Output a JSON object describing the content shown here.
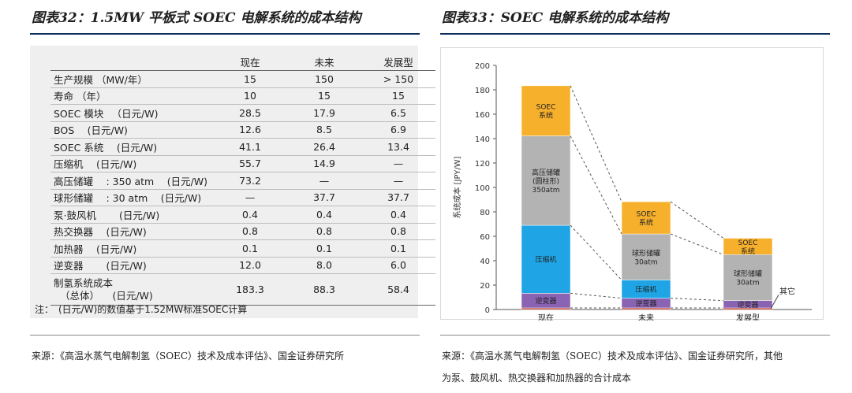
{
  "left": {
    "title": "图表32：1.5MW 平板式 SOEC 电解系统的成本结构",
    "headers": [
      "",
      "现在",
      "未来",
      "发展型"
    ],
    "rows": [
      {
        "label": "生产规模 （MW/年）",
        "values": [
          "15",
          "150",
          "> 150"
        ]
      },
      {
        "label": "寿命 （年）",
        "values": [
          "10",
          "15",
          "15"
        ]
      },
      {
        "label": "SOEC 模块 　（日元/W)",
        "values": [
          "28.5",
          "17.9",
          "6.5"
        ]
      },
      {
        "label": "BOS 　(日元/W)",
        "values": [
          "12.6",
          "8.5",
          "6.9"
        ]
      },
      {
        "label": "SOEC 系统 　(日元/W)",
        "values": [
          "41.1",
          "26.4",
          "13.4"
        ]
      },
      {
        "label": "压缩机 　(日元/W)",
        "values": [
          "55.7",
          "14.9",
          "—"
        ]
      },
      {
        "label": "高压储罐 　: 350 atm 　(日元/W)",
        "values": [
          "73.2",
          "—",
          "—"
        ]
      },
      {
        "label": "球形储罐 　: 30 atm 　(日元/W)",
        "values": [
          "—",
          "37.7",
          "37.7"
        ]
      },
      {
        "label": "泵·鼓风机 　　(日元/W)",
        "values": [
          "0.4",
          "0.4",
          "0.4"
        ]
      },
      {
        "label": "热交换器 　(日元/W)",
        "values": [
          "0.8",
          "0.8",
          "0.8"
        ]
      },
      {
        "label": "加热器 　(日元/W)",
        "values": [
          "0.1",
          "0.1",
          "0.1"
        ]
      },
      {
        "label": "逆变器 　　(日元/W)",
        "values": [
          "12.0",
          "8.0",
          "6.0"
        ]
      }
    ],
    "total_row": {
      "label_line1": "制氢系统成本",
      "label_line2": "（总体） 　(日元/W)",
      "values": [
        "183.3",
        "88.3",
        "58.4"
      ]
    },
    "note": "注：　(日元/W)的数值基于1.52MW标准SOEC计算",
    "source": "来源：《高温水蒸气电解制氢（SOEC）技术及成本评估》、国金证券研究所"
  },
  "right": {
    "title": "图表33：SOEC 电解系统的成本结构",
    "source_line1": "来源：《高温水蒸气电解制氢（SOEC）技术及成本评估》、国金证券研究所，其他",
    "source_line2": "为泵、鼓风机、热交换器和加热器的合计成本"
  },
  "colors": {
    "rule": "#0e2f5a",
    "soec": "#f7b02c",
    "tank": "#b3b3b3",
    "compressor": "#1fa5e6",
    "inverter": "#8a63b3",
    "other": "#c0392b"
  },
  "chart_data": {
    "type": "bar",
    "stacked": true,
    "categories": [
      "现在",
      "未来",
      "发展型"
    ],
    "ylabel": "系统成本 [JPY/W]",
    "ylim": [
      0,
      200
    ],
    "yticks": [
      0,
      20,
      40,
      60,
      80,
      100,
      120,
      140,
      160,
      180,
      200
    ],
    "grid": false,
    "connectors": "dashed",
    "series": [
      {
        "key": "other",
        "values": [
          1.3,
          1.3,
          1.3
        ],
        "label": "",
        "callout": "其它"
      },
      {
        "key": "inverter",
        "values": [
          12.0,
          8.0,
          6.0
        ],
        "label": "逆变器"
      },
      {
        "key": "compressor",
        "values": [
          55.7,
          14.9,
          0
        ],
        "labels": [
          "压缩机",
          "压缩机",
          ""
        ]
      },
      {
        "key": "tank",
        "values": [
          73.2,
          37.7,
          37.7
        ],
        "labels": [
          "高压储罐\n(圆柱形)\n350atm",
          "球形储罐\n30atm",
          "球形储罐\n30atm"
        ]
      },
      {
        "key": "soec",
        "values": [
          41.1,
          26.4,
          13.4
        ],
        "label": "SOEC\n系统"
      }
    ]
  }
}
